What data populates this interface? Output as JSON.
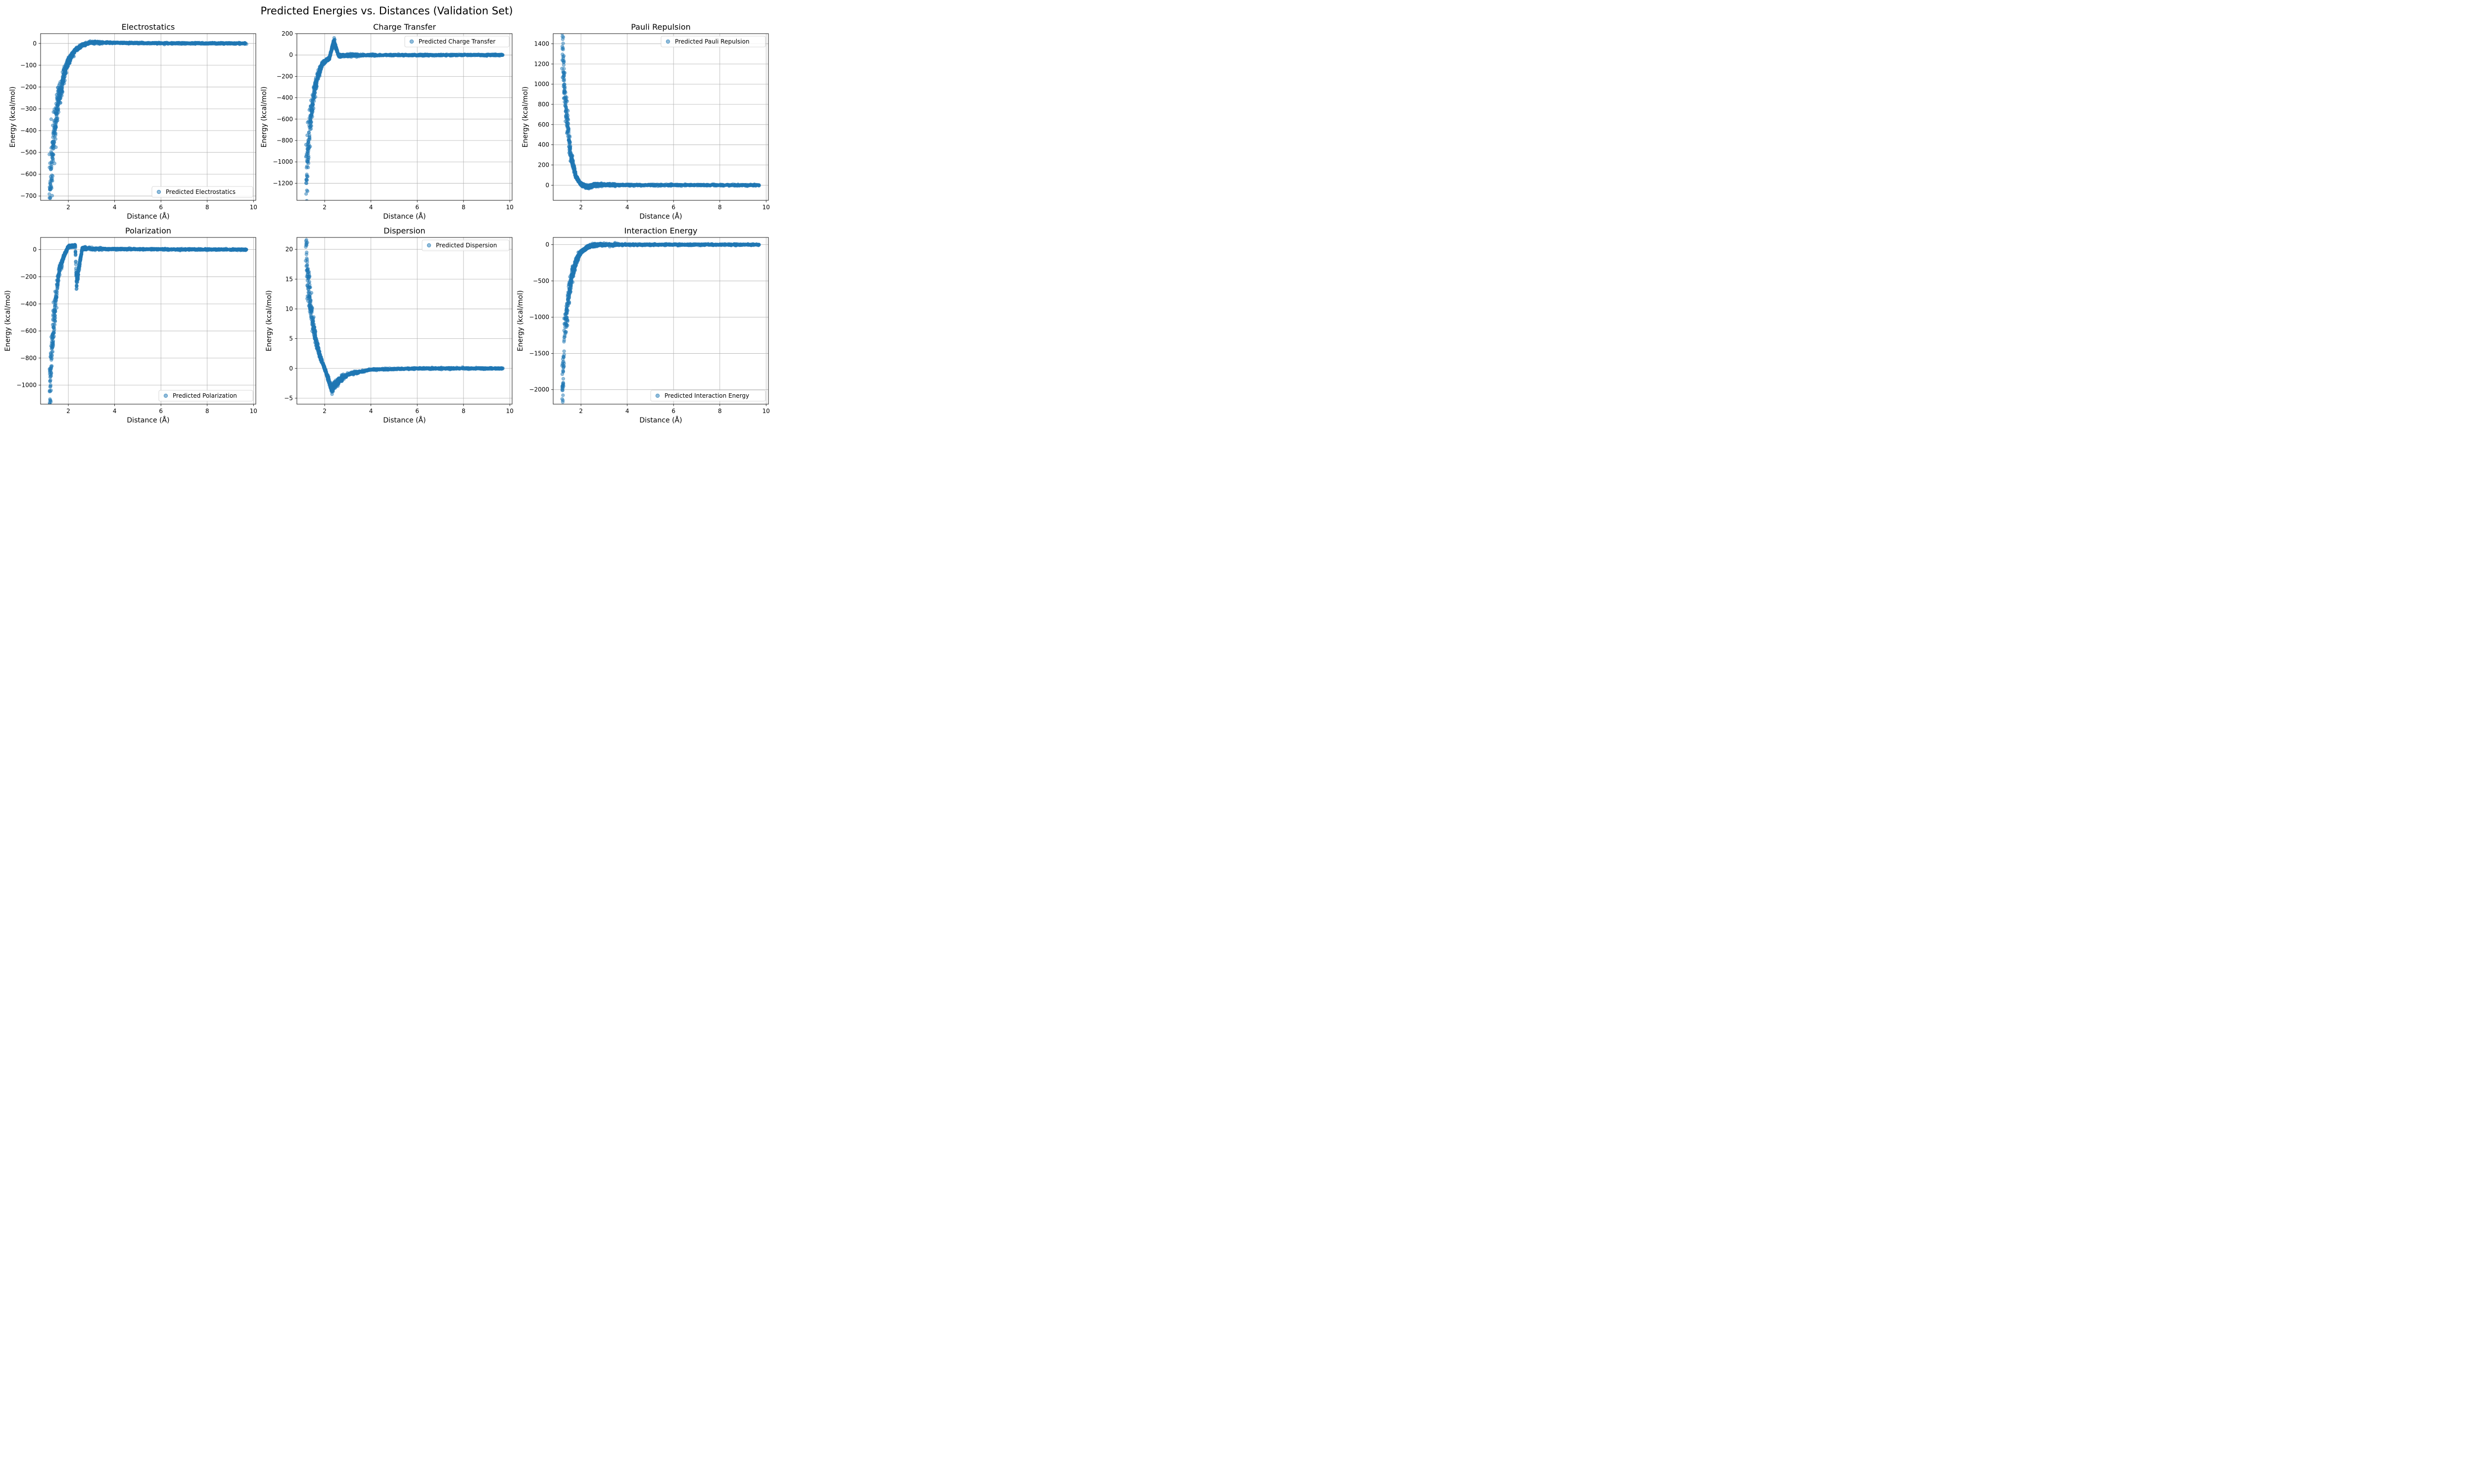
{
  "figure": {
    "title": "Predicted Energies vs. Distances (Validation Set)",
    "point_color": "#1f77b4",
    "grid_color": "#b0b0b0"
  },
  "chart_data": [
    {
      "type": "scatter",
      "title": "Electrostatics",
      "xlabel": "Distance (Å)",
      "ylabel": "Energy (kcal/mol)",
      "legend": "Predicted Electrostatics",
      "legend_position": "lower right",
      "grid": true,
      "xlim": [
        0.8,
        10.1
      ],
      "ylim": [
        -720,
        45
      ],
      "xticks": [
        2,
        4,
        6,
        8,
        10
      ],
      "yticks": [
        -700,
        -600,
        -500,
        -400,
        -300,
        -200,
        -100,
        0
      ],
      "trend": [
        [
          1.2,
          -690
        ],
        [
          1.3,
          -520
        ],
        [
          1.4,
          -410
        ],
        [
          1.5,
          -320
        ],
        [
          1.6,
          -250
        ],
        [
          1.8,
          -150
        ],
        [
          2.0,
          -80
        ],
        [
          2.3,
          -30
        ],
        [
          2.6,
          -8
        ],
        [
          3.0,
          5
        ],
        [
          4.0,
          3
        ],
        [
          6.0,
          1
        ],
        [
          9.7,
          0
        ]
      ]
    },
    {
      "type": "scatter",
      "title": "Charge Transfer",
      "xlabel": "Distance (Å)",
      "ylabel": "Energy (kcal/mol)",
      "legend": "Predicted Charge Transfer",
      "legend_position": "upper right",
      "grid": true,
      "xlim": [
        0.8,
        10.1
      ],
      "ylim": [
        -1360,
        200
      ],
      "xticks": [
        2,
        4,
        6,
        8,
        10
      ],
      "yticks": [
        -1200,
        -1000,
        -800,
        -600,
        -400,
        -200,
        0,
        200
      ],
      "trend": [
        [
          1.2,
          -1290
        ],
        [
          1.25,
          -1000
        ],
        [
          1.35,
          -700
        ],
        [
          1.45,
          -500
        ],
        [
          1.55,
          -350
        ],
        [
          1.7,
          -200
        ],
        [
          1.9,
          -80
        ],
        [
          2.2,
          -30
        ],
        [
          2.4,
          130
        ],
        [
          2.6,
          -5
        ],
        [
          3.0,
          -3
        ],
        [
          4.0,
          -1
        ],
        [
          9.7,
          0
        ]
      ]
    },
    {
      "type": "scatter",
      "title": "Pauli Repulsion",
      "xlabel": "Distance (Å)",
      "ylabel": "Energy (kcal/mol)",
      "legend": "Predicted Pauli Repulsion",
      "legend_position": "upper right",
      "grid": true,
      "xlim": [
        0.8,
        10.1
      ],
      "ylim": [
        -150,
        1500
      ],
      "xticks": [
        2,
        4,
        6,
        8,
        10
      ],
      "yticks": [
        0,
        200,
        400,
        600,
        800,
        1000,
        1200,
        1400
      ],
      "trend": [
        [
          1.22,
          1420
        ],
        [
          1.25,
          1100
        ],
        [
          1.3,
          900
        ],
        [
          1.4,
          650
        ],
        [
          1.5,
          420
        ],
        [
          1.6,
          250
        ],
        [
          1.8,
          80
        ],
        [
          2.0,
          10
        ],
        [
          2.3,
          -20
        ],
        [
          2.6,
          5
        ],
        [
          3.0,
          2
        ],
        [
          9.7,
          0
        ]
      ]
    },
    {
      "type": "scatter",
      "title": "Polarization",
      "xlabel": "Distance (Å)",
      "ylabel": "Energy (kcal/mol)",
      "legend": "Predicted Polarization",
      "legend_position": "lower right",
      "grid": true,
      "xlim": [
        0.8,
        10.1
      ],
      "ylim": [
        -1140,
        90
      ],
      "xticks": [
        2,
        4,
        6,
        8,
        10
      ],
      "yticks": [
        -1000,
        -800,
        -600,
        -400,
        -200,
        0
      ],
      "trend": [
        [
          1.2,
          -1080
        ],
        [
          1.25,
          -900
        ],
        [
          1.3,
          -700
        ],
        [
          1.4,
          -480
        ],
        [
          1.5,
          -300
        ],
        [
          1.6,
          -160
        ],
        [
          1.8,
          -50
        ],
        [
          2.0,
          20
        ],
        [
          2.3,
          30
        ],
        [
          2.35,
          -250
        ],
        [
          2.6,
          10
        ],
        [
          3.0,
          5
        ],
        [
          9.7,
          0
        ]
      ]
    },
    {
      "type": "scatter",
      "title": "Dispersion",
      "xlabel": "Distance (Å)",
      "ylabel": "Energy (kcal/mol)",
      "legend": "Predicted Dispersion",
      "legend_position": "upper right",
      "grid": true,
      "xlim": [
        0.8,
        10.1
      ],
      "ylim": [
        -6,
        22
      ],
      "xticks": [
        2,
        4,
        6,
        8,
        10
      ],
      "yticks": [
        -5,
        0,
        5,
        10,
        15,
        20
      ],
      "trend": [
        [
          1.2,
          20.6
        ],
        [
          1.3,
          14
        ],
        [
          1.4,
          10
        ],
        [
          1.6,
          5
        ],
        [
          1.8,
          2
        ],
        [
          2.0,
          0
        ],
        [
          2.3,
          -3.5
        ],
        [
          2.6,
          -2
        ],
        [
          3.0,
          -1
        ],
        [
          4.0,
          -0.2
        ],
        [
          6.0,
          0
        ],
        [
          9.7,
          0
        ]
      ]
    },
    {
      "type": "scatter",
      "title": "Interaction Energy",
      "xlabel": "Distance (Å)",
      "ylabel": "Energy (kcal/mol)",
      "legend": "Predicted Interaction Energy",
      "legend_position": "lower right",
      "grid": true,
      "xlim": [
        0.8,
        10.1
      ],
      "ylim": [
        -2200,
        100
      ],
      "xticks": [
        2,
        4,
        6,
        8,
        10
      ],
      "yticks": [
        -2000,
        -1500,
        -1000,
        -500,
        0
      ],
      "trend": [
        [
          1.2,
          -2100
        ],
        [
          1.25,
          -1600
        ],
        [
          1.3,
          -1200
        ],
        [
          1.4,
          -900
        ],
        [
          1.5,
          -650
        ],
        [
          1.6,
          -450
        ],
        [
          1.8,
          -220
        ],
        [
          2.0,
          -100
        ],
        [
          2.3,
          -30
        ],
        [
          2.6,
          -5
        ],
        [
          3.0,
          0
        ],
        [
          9.7,
          0
        ]
      ]
    }
  ]
}
